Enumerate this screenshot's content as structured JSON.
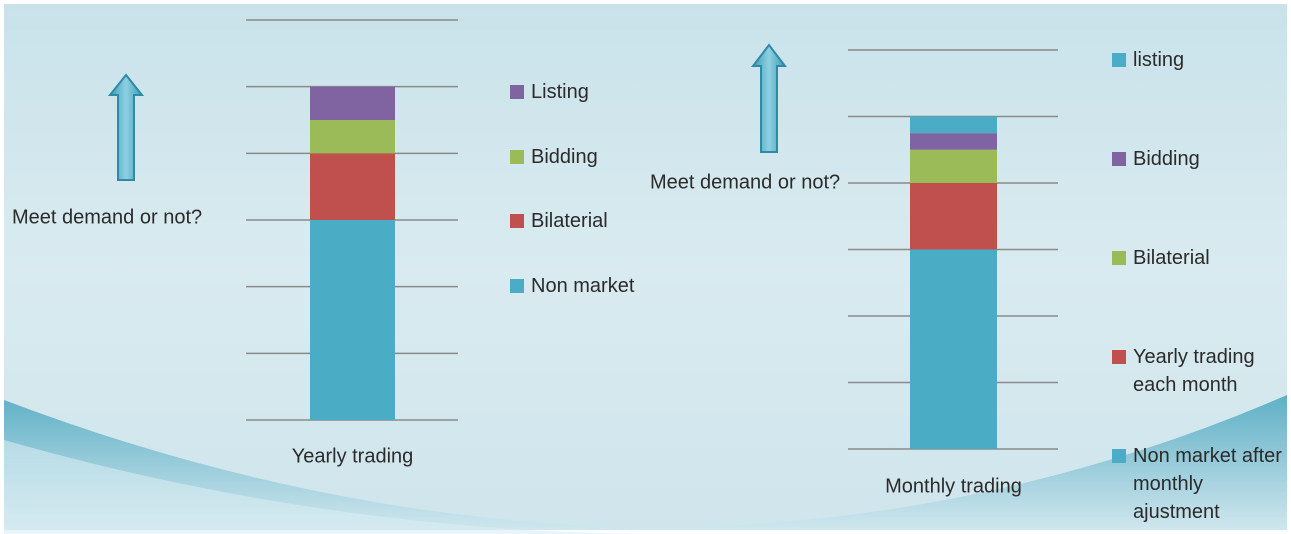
{
  "chart_data": [
    {
      "type": "stacked-bar",
      "categories": [
        "Yearly trading"
      ],
      "annotation": "Meet demand or not?",
      "ylim": [
        0,
        6
      ],
      "yticks": [
        0,
        1,
        2,
        3,
        4,
        5,
        6
      ],
      "grid": true,
      "series": [
        {
          "name": "Non market",
          "color": "#4bacc6",
          "values": [
            3
          ]
        },
        {
          "name": "Bilaterial",
          "color": "#c0504d",
          "values": [
            1
          ]
        },
        {
          "name": "Bidding",
          "color": "#9bbb59",
          "values": [
            0.5
          ]
        },
        {
          "name": "Listing",
          "color": "#8064a2",
          "values": [
            0.5
          ]
        }
      ]
    },
    {
      "type": "stacked-bar",
      "categories": [
        "Monthly trading"
      ],
      "annotation": "Meet demand or not?",
      "ylim": [
        0,
        6
      ],
      "yticks": [
        0,
        1,
        2,
        3,
        4,
        5,
        6
      ],
      "grid": true,
      "series": [
        {
          "name": "Non market after monthly ajustment",
          "color": "#4bacc6",
          "values": [
            3
          ]
        },
        {
          "name": "Yearly trading each month",
          "color": "#c0504d",
          "values": [
            1
          ]
        },
        {
          "name": "Bilaterial",
          "color": "#9bbb59",
          "values": [
            0.5
          ]
        },
        {
          "name": "Bidding",
          "color": "#8064a2",
          "values": [
            0.25
          ]
        },
        {
          "name": "listing",
          "color": "#4bacc6",
          "values": [
            0.25
          ]
        }
      ]
    }
  ]
}
